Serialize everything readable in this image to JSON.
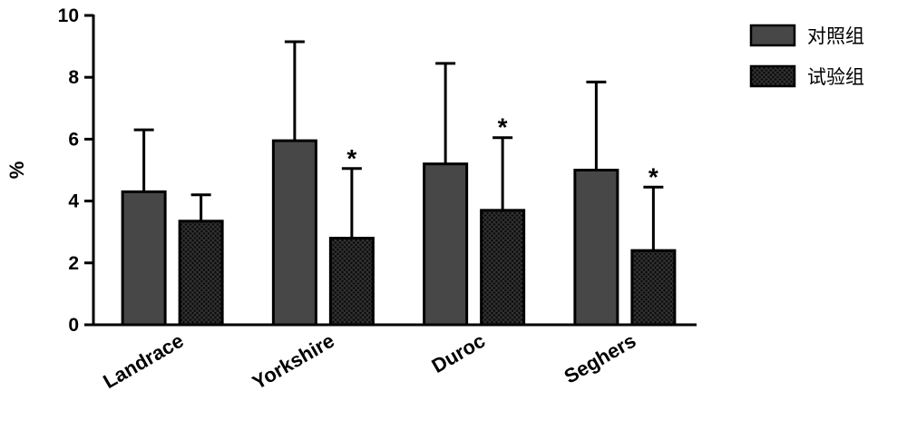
{
  "chart_data": {
    "type": "bar",
    "ylabel": "%",
    "ylim": [
      0,
      10
    ],
    "yticks": [
      0,
      2,
      4,
      6,
      8,
      10
    ],
    "ytick_labels": [
      "0",
      "2",
      "4",
      "6",
      "8",
      "10"
    ],
    "categories": [
      "Landrace",
      "Yorkshire",
      "Duroc",
      "Seghers"
    ],
    "legend_position": "top-right",
    "grid": false,
    "series": [
      {
        "name": "对照组",
        "color": "#474747",
        "values": [
          4.3,
          5.95,
          5.2,
          5.0
        ],
        "errors": [
          2.0,
          3.2,
          3.25,
          2.85
        ],
        "annotations": [
          "",
          "",
          "",
          ""
        ]
      },
      {
        "name": "试验组",
        "color": "#1a1a1a",
        "pattern": "dense-crosshatch",
        "values": [
          3.35,
          2.8,
          3.7,
          2.4
        ],
        "errors": [
          0.85,
          2.25,
          2.35,
          2.05
        ],
        "annotations": [
          "",
          "*",
          "*",
          "*"
        ]
      }
    ]
  }
}
